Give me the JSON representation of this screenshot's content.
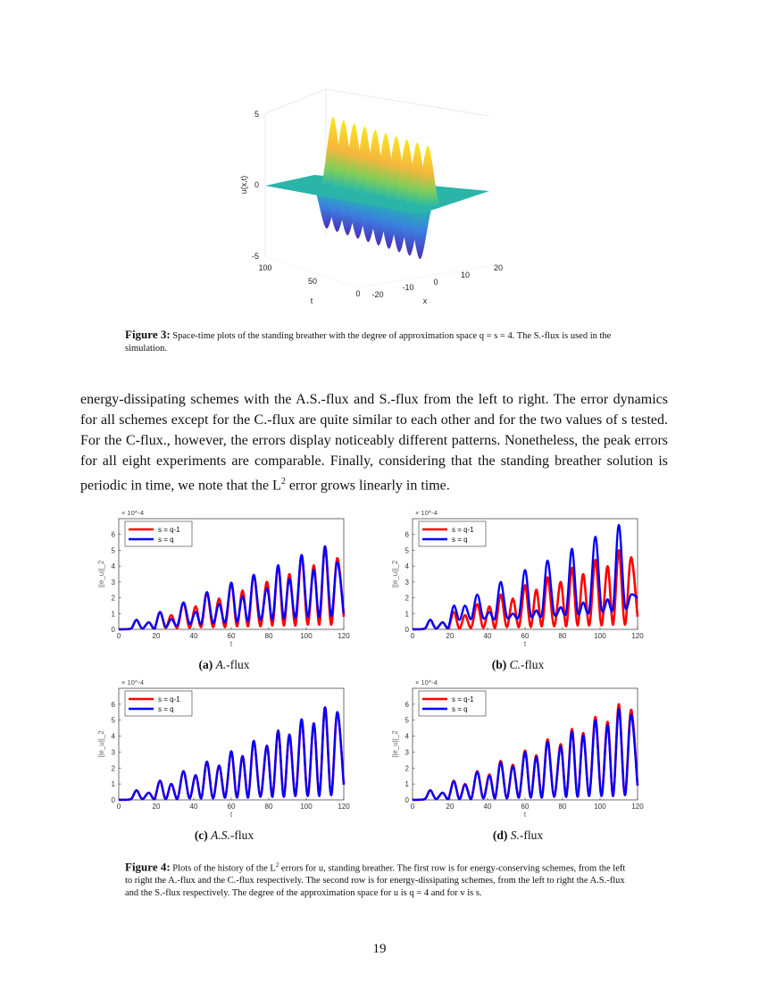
{
  "figure3": {
    "zlabel": "u(x,t)",
    "xlabel": "x",
    "tlabel": "t",
    "zticks": [
      "5",
      "0",
      "-5"
    ],
    "tticks": [
      "100",
      "50",
      "0"
    ],
    "xticks": [
      "-20",
      "-10",
      "0",
      "10",
      "20"
    ],
    "caption_label": "Figure 3:",
    "caption_text": " Space-time plots of the standing breather with the degree of approximation space q = s = 4. The S.-flux is used in the simulation."
  },
  "paragraph": {
    "text_before": "energy-dissipating schemes with the A.S.-flux and S.-flux from the left to right. The error dynamics for all schemes except for the C.-flux are quite similar to each other and for the two values of s tested. For the C-flux., however, the errors display noticeably different patterns. Nonetheless, the peak errors for all eight experiments are comparable. Finally, considering that the standing breather solution is periodic in time, we note that the L",
    "sup": "2",
    "text_after": " error grows linearly in time."
  },
  "figure4": {
    "caption_label": "Figure 4:",
    "caption_text_1": " Plots of the history of the L",
    "caption_sup": "2",
    "caption_text_2": " errors for u, standing breather. The first row is for energy-conserving schemes, from the left to right the A.-flux and the C.-flux respectively. The second row is for energy-dissipating schemes, from the left to right the A.S.-flux and the S.-flux respectively. The degree of the approximation space for u is q = 4 and for v is s."
  },
  "page_number": "19",
  "colors": {
    "red": "#ff0000",
    "blue": "#0000ff"
  },
  "chart_data": [
    {
      "type": "line",
      "subcaption_label": "(a)",
      "subcaption_text": "A.-flux",
      "xlabel": "t",
      "ylabel": "||e_u||_2",
      "exponent": "× 10^-4",
      "xlim": [
        0,
        120
      ],
      "ylim": [
        0,
        7
      ],
      "xticks": [
        0,
        20,
        40,
        60,
        80,
        100,
        120
      ],
      "yticks": [
        0,
        1,
        2,
        3,
        4,
        5,
        6
      ],
      "legend": "top-left",
      "t": [
        0,
        5,
        7,
        9.5,
        12.5,
        16,
        19,
        22,
        25,
        28,
        31.25,
        34.5,
        37.75,
        41,
        44,
        47,
        50.25,
        53.5,
        56.75,
        60,
        63,
        66,
        69,
        72,
        75.5,
        79,
        82,
        85,
        88,
        91,
        94.25,
        97.5,
        100.75,
        104,
        107,
        110,
        113.25,
        116.5,
        120
      ],
      "series": [
        {
          "name": "s = q-1",
          "color": "#ff0000",
          "values": [
            0,
            0.02,
            0.1,
            0.6,
            0.05,
            0.45,
            0.05,
            1.1,
            0.1,
            0.9,
            0.1,
            1.7,
            0.1,
            1.45,
            0.15,
            2.35,
            0.15,
            1.95,
            0.15,
            2.95,
            0.2,
            2.45,
            0.2,
            3.45,
            0.2,
            3.0,
            0.25,
            4.05,
            0.25,
            3.5,
            0.25,
            4.7,
            0.3,
            4.05,
            0.3,
            5.25,
            0.3,
            4.5,
            0.8
          ]
        },
        {
          "name": "s = q",
          "color": "#0000ff",
          "values": [
            0,
            0.02,
            0.1,
            0.6,
            0.05,
            0.45,
            0.05,
            1.1,
            0.15,
            0.65,
            0.25,
            1.7,
            0.35,
            1.1,
            0.35,
            2.35,
            0.4,
            1.6,
            0.45,
            2.95,
            0.5,
            2.1,
            0.55,
            3.45,
            0.6,
            2.6,
            0.65,
            4.05,
            0.7,
            3.2,
            0.75,
            4.7,
            0.8,
            3.75,
            0.8,
            5.25,
            0.85,
            4.25,
            1.0
          ]
        }
      ]
    },
    {
      "type": "line",
      "subcaption_label": "(b)",
      "subcaption_text": "C.-flux",
      "xlabel": "t",
      "ylabel": "||e_u||_2",
      "exponent": "× 10^-4",
      "xlim": [
        0,
        120
      ],
      "ylim": [
        0,
        7
      ],
      "xticks": [
        0,
        20,
        40,
        60,
        80,
        100,
        120
      ],
      "yticks": [
        0,
        1,
        2,
        3,
        4,
        5,
        6
      ],
      "legend": "top-left",
      "t": [
        0,
        5,
        7,
        9.5,
        12.5,
        16,
        19,
        22,
        25,
        28,
        31.25,
        34.5,
        37.75,
        41,
        44,
        47,
        50.25,
        53.5,
        56.75,
        60,
        63,
        66,
        69,
        72,
        75.5,
        79,
        82,
        85,
        88,
        91,
        94.25,
        97.5,
        100.75,
        104,
        107,
        110,
        113.25,
        116.5,
        120
      ],
      "series": [
        {
          "name": "s = q-1",
          "color": "#ff0000",
          "values": [
            0,
            0.02,
            0.1,
            0.6,
            0.05,
            0.45,
            0.05,
            1.1,
            0.05,
            0.9,
            0.1,
            1.6,
            0.1,
            1.45,
            0.1,
            2.2,
            0.15,
            1.95,
            0.15,
            2.8,
            0.15,
            2.5,
            0.2,
            3.3,
            0.2,
            3.0,
            0.2,
            3.9,
            0.25,
            3.5,
            0.25,
            4.4,
            0.25,
            4.0,
            0.3,
            5.0,
            0.3,
            4.55,
            0.8
          ]
        },
        {
          "name": "s = q",
          "color": "#0000ff",
          "values": [
            0,
            0.02,
            0.1,
            0.6,
            0.05,
            0.45,
            0.1,
            1.5,
            0.6,
            1.5,
            0.65,
            2.2,
            0.7,
            1.1,
            0.7,
            3.0,
            0.8,
            1.0,
            0.85,
            3.75,
            0.9,
            1.2,
            0.95,
            4.35,
            1.0,
            1.4,
            1.1,
            5.1,
            1.1,
            1.7,
            1.2,
            5.85,
            1.3,
            1.9,
            1.4,
            6.6,
            1.5,
            2.2,
            2.0
          ]
        }
      ]
    },
    {
      "type": "line",
      "subcaption_label": "(c)",
      "subcaption_text": "A.S.-flux",
      "xlabel": "t",
      "ylabel": "||e_u||_2",
      "exponent": "× 10^-4",
      "xlim": [
        0,
        120
      ],
      "ylim": [
        0,
        7
      ],
      "xticks": [
        0,
        20,
        40,
        60,
        80,
        100,
        120
      ],
      "yticks": [
        0,
        1,
        2,
        3,
        4,
        5,
        6
      ],
      "legend": "top-left",
      "t": [
        0,
        5,
        7,
        9.5,
        12.5,
        16,
        19,
        22,
        25,
        28,
        31.25,
        34.5,
        37.75,
        41,
        44,
        47,
        50.25,
        53.5,
        56.75,
        60,
        63,
        66,
        69,
        72,
        75.5,
        79,
        82,
        85,
        88,
        91,
        94.25,
        97.5,
        100.75,
        104,
        107,
        110,
        113.25,
        116.5,
        120
      ],
      "series": [
        {
          "name": "s = q-1",
          "color": "#ff0000",
          "values": [
            0,
            0.02,
            0.1,
            0.6,
            0.05,
            0.45,
            0.05,
            1.2,
            0.05,
            1.0,
            0.05,
            1.8,
            0.1,
            1.55,
            0.1,
            2.4,
            0.1,
            2.15,
            0.15,
            3.05,
            0.15,
            2.75,
            0.15,
            3.7,
            0.2,
            3.4,
            0.2,
            4.35,
            0.2,
            4.1,
            0.25,
            5.05,
            0.25,
            4.8,
            0.25,
            5.8,
            0.3,
            5.5,
            0.95
          ]
        },
        {
          "name": "s = q",
          "color": "#0000ff",
          "values": [
            0,
            0.02,
            0.1,
            0.6,
            0.05,
            0.45,
            0.05,
            1.2,
            0.05,
            1.0,
            0.05,
            1.8,
            0.1,
            1.55,
            0.1,
            2.4,
            0.1,
            2.15,
            0.15,
            3.05,
            0.15,
            2.75,
            0.15,
            3.7,
            0.2,
            3.4,
            0.2,
            4.35,
            0.2,
            4.1,
            0.25,
            5.05,
            0.25,
            4.8,
            0.25,
            5.8,
            0.3,
            5.5,
            0.95
          ]
        }
      ]
    },
    {
      "type": "line",
      "subcaption_label": "(d)",
      "subcaption_text": "S.-flux",
      "xlabel": "t",
      "ylabel": "||e_u||_2",
      "exponent": "× 10^-4",
      "xlim": [
        0,
        120
      ],
      "ylim": [
        0,
        7
      ],
      "xticks": [
        0,
        20,
        40,
        60,
        80,
        100,
        120
      ],
      "yticks": [
        0,
        1,
        2,
        3,
        4,
        5,
        6
      ],
      "legend": "top-left",
      "t": [
        0,
        5,
        7,
        9.5,
        12.5,
        16,
        19,
        22,
        25,
        28,
        31.25,
        34.5,
        37.75,
        41,
        44,
        47,
        50.25,
        53.5,
        56.75,
        60,
        63,
        66,
        69,
        72,
        75.5,
        79,
        82,
        85,
        88,
        91,
        94.25,
        97.5,
        100.75,
        104,
        107,
        110,
        113.25,
        116.5,
        120
      ],
      "series": [
        {
          "name": "s = q-1",
          "color": "#ff0000",
          "values": [
            0,
            0.02,
            0.1,
            0.6,
            0.05,
            0.45,
            0.05,
            1.2,
            0.05,
            1.0,
            0.05,
            1.8,
            0.1,
            1.6,
            0.1,
            2.45,
            0.1,
            2.2,
            0.15,
            3.1,
            0.15,
            2.8,
            0.15,
            3.8,
            0.2,
            3.5,
            0.2,
            4.45,
            0.2,
            4.2,
            0.25,
            5.2,
            0.25,
            4.9,
            0.25,
            6.0,
            0.3,
            5.65,
            0.9
          ]
        },
        {
          "name": "s = q",
          "color": "#0000ff",
          "values": [
            0,
            0.02,
            0.1,
            0.6,
            0.05,
            0.45,
            0.05,
            1.15,
            0.05,
            0.95,
            0.05,
            1.75,
            0.1,
            1.5,
            0.1,
            2.35,
            0.1,
            2.1,
            0.15,
            3.0,
            0.15,
            2.7,
            0.15,
            3.65,
            0.2,
            3.35,
            0.2,
            4.3,
            0.2,
            4.05,
            0.25,
            5.0,
            0.25,
            4.7,
            0.25,
            5.7,
            0.3,
            5.35,
            0.9
          ]
        }
      ]
    }
  ]
}
